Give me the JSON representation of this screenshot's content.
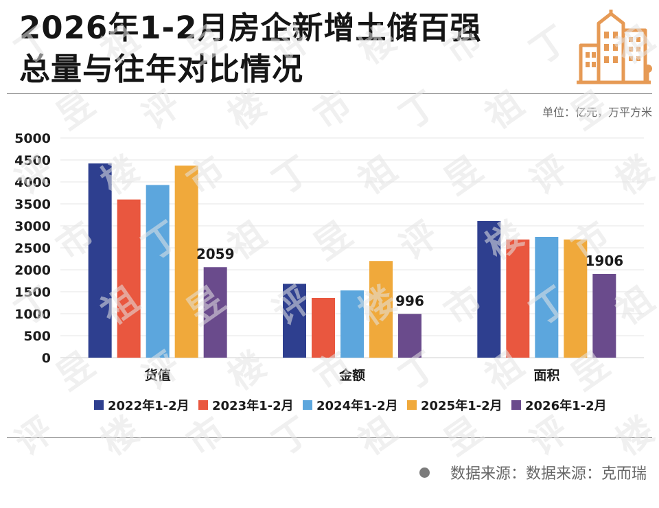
{
  "title": {
    "line1": "2026年1-2月房企新增土储百强",
    "line2": "总量与往年对比情况"
  },
  "unit_label": "单位：亿元，万平方米",
  "source_text": "数据来源：数据来源：克而瑞",
  "watermark_text": "丁祖昱评楼市",
  "logo_icon": "building-icon",
  "colors": {
    "2022年1-2月": "#2e3f8f",
    "2023年1-2月": "#e9573f",
    "2024年1-2月": "#5ca6dd",
    "2025年1-2月": "#f0a93b",
    "2026年1-2月": "#6a4b8c",
    "logo": "#e69a55"
  },
  "chart_data": {
    "type": "bar",
    "categories": [
      "货值",
      "金额",
      "面积"
    ],
    "series": [
      {
        "name": "2022年1-2月",
        "values": [
          4420,
          1680,
          3110
        ]
      },
      {
        "name": "2023年1-2月",
        "values": [
          3600,
          1360,
          2690
        ]
      },
      {
        "name": "2024年1-2月",
        "values": [
          3930,
          1530,
          2750
        ]
      },
      {
        "name": "2025年1-2月",
        "values": [
          4370,
          2200,
          2690
        ]
      },
      {
        "name": "2026年1-2月",
        "values": [
          2059,
          996,
          1906
        ],
        "labels": [
          "2059",
          "996",
          "1906"
        ]
      }
    ],
    "ylim": [
      0,
      5000
    ],
    "yticks": [
      "0",
      "500",
      "1000",
      "1500",
      "2000",
      "2500",
      "3000",
      "3500",
      "4000",
      "4500",
      "5000"
    ],
    "grid": true,
    "legend_position": "bottom"
  }
}
